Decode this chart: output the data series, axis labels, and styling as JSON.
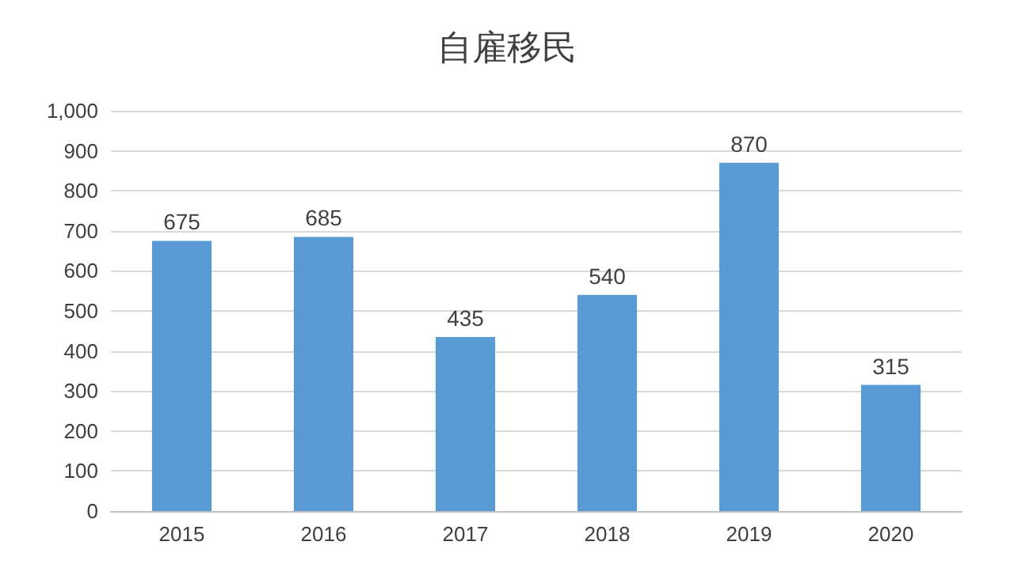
{
  "chart_data": {
    "type": "bar",
    "title": "自雇移民",
    "categories": [
      "2015",
      "2016",
      "2017",
      "2018",
      "2019",
      "2020"
    ],
    "values": [
      675,
      685,
      435,
      540,
      870,
      315
    ],
    "color": "#5b9bd5",
    "ylim": [
      0,
      1000
    ],
    "yticks": [
      0,
      100,
      200,
      300,
      400,
      500,
      600,
      700,
      800,
      900,
      {
        "value": 1000,
        "label": "1,000"
      }
    ],
    "grid": "y",
    "data_labels": true
  }
}
